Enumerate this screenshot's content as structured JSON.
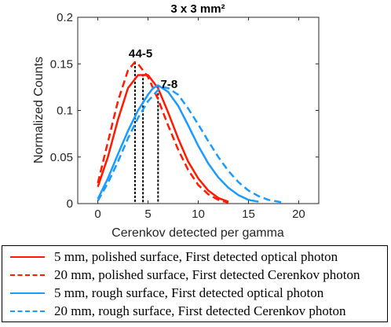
{
  "chart_data": {
    "type": "line",
    "title": "3 x 3 mm²",
    "xlabel": "Cerenkov detected per gamma",
    "ylabel": "Normalized Counts",
    "xlim": [
      -2,
      22
    ],
    "ylim": [
      0,
      0.2
    ],
    "xticks": [
      0,
      5,
      10,
      15,
      20
    ],
    "yticks": [
      0,
      0.05,
      0.1,
      0.15,
      0.2
    ],
    "xtick_labels": [
      "0",
      "5",
      "10",
      "15",
      "20"
    ],
    "ytick_labels": [
      "0",
      "0.05",
      "0.1",
      "0.15",
      "0.2"
    ],
    "grid": false,
    "legend_position": "below",
    "series": [
      {
        "name": "5 mm, polished surface, First detected optical photon",
        "color": "#ff1a00",
        "dash": "solid",
        "x": [
          0,
          1,
          2,
          3,
          4,
          5,
          6,
          7,
          8,
          9,
          10,
          11,
          12,
          13
        ],
        "y": [
          0.018,
          0.05,
          0.09,
          0.124,
          0.138,
          0.138,
          0.124,
          0.098,
          0.07,
          0.045,
          0.027,
          0.014,
          0.006,
          0.002
        ]
      },
      {
        "name": "20 mm, polished surface, First detected Cerenkov photon",
        "color": "#ff1a00",
        "dash": "dashed",
        "x": [
          0,
          1,
          2,
          3,
          3.7,
          4,
          5,
          6,
          7,
          8,
          9,
          10,
          11,
          12,
          13
        ],
        "y": [
          0.022,
          0.066,
          0.11,
          0.143,
          0.152,
          0.15,
          0.136,
          0.112,
          0.084,
          0.058,
          0.036,
          0.02,
          0.01,
          0.004,
          0.001
        ]
      },
      {
        "name": "5 mm, rough surface, First detected optical photon",
        "color": "#1a9bff",
        "dash": "solid",
        "x": [
          0,
          1,
          2,
          3,
          4,
          5,
          5.5,
          6,
          7,
          8,
          9,
          10,
          11,
          12,
          13,
          14,
          15,
          16
        ],
        "y": [
          0.005,
          0.027,
          0.053,
          0.078,
          0.1,
          0.117,
          0.124,
          0.127,
          0.12,
          0.105,
          0.084,
          0.062,
          0.043,
          0.028,
          0.017,
          0.009,
          0.004,
          0.002
        ]
      },
      {
        "name": "20 mm, rough surface, First detected Cerenkov photon",
        "color": "#1a9bff",
        "dash": "dashed",
        "x": [
          0,
          1,
          2,
          3,
          4,
          5,
          6,
          6.5,
          7,
          8,
          9,
          10,
          11,
          12,
          13,
          14,
          15,
          16,
          17,
          18,
          18.5
        ],
        "y": [
          0.003,
          0.022,
          0.045,
          0.07,
          0.092,
          0.11,
          0.122,
          0.125,
          0.124,
          0.117,
          0.102,
          0.085,
          0.067,
          0.05,
          0.035,
          0.023,
          0.014,
          0.008,
          0.004,
          0.002,
          0.001
        ]
      }
    ],
    "vlines": [
      {
        "x": 3.7,
        "y": 0.152
      },
      {
        "x": 4.5,
        "y": 0.139
      },
      {
        "x": 6.0,
        "y": 0.127
      }
    ],
    "annotations": [
      {
        "text": "4",
        "x": 3.4,
        "y": 0.157
      },
      {
        "text": "4-5",
        "x": 4.6,
        "y": 0.157
      },
      {
        "text": "7-8",
        "x": 7.1,
        "y": 0.124
      }
    ]
  }
}
